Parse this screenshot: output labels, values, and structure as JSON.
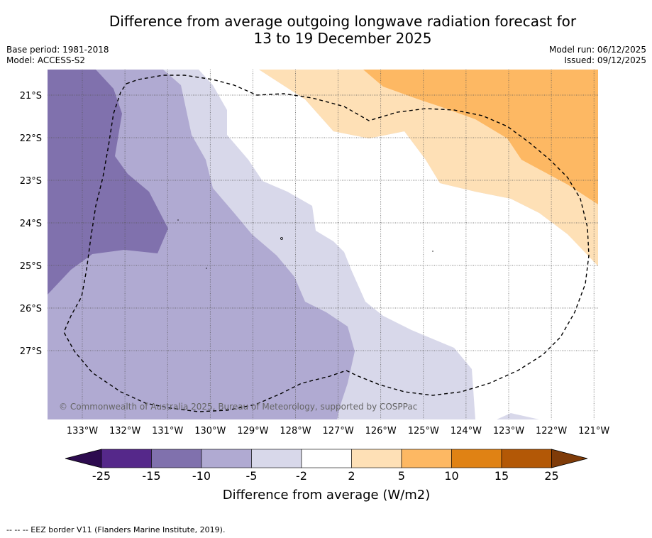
{
  "title": {
    "line1": "Difference from average outgoing longwave radiation forecast for",
    "line2": "13 to 19 December 2025"
  },
  "meta_left": {
    "base_period": "Base period: 1981-2018",
    "model": "Model: ACCESS-S2"
  },
  "meta_right": {
    "model_run": "Model run: 06/12/2025",
    "issued": "Issued: 09/12/2025"
  },
  "map": {
    "lat_labels": [
      "21°S",
      "22°S",
      "23°S",
      "24°S",
      "25°S",
      "26°S",
      "27°S"
    ],
    "lon_labels": [
      "133°W",
      "132°W",
      "131°W",
      "130°W",
      "129°W",
      "128°W",
      "127°W",
      "126°W",
      "125°W",
      "124°W",
      "123°W",
      "122°W",
      "121°W"
    ],
    "copyright": "© Commonwealth of Australia 2025, Bureau of Meteorology, supported by COSPPac"
  },
  "colorbar": {
    "tick_labels": [
      "-25",
      "-15",
      "-10",
      "-5",
      "-2",
      "2",
      "5",
      "10",
      "15",
      "25"
    ],
    "label": "Difference from average (W/m2)",
    "colors": [
      "#2d0b4f",
      "#55288a",
      "#8071ad",
      "#b0aad2",
      "#d8d8ea",
      "#ffffff",
      "#fee0b6",
      "#fdb863",
      "#e08214",
      "#b35806",
      "#7f3b08"
    ]
  },
  "footnote": "--  --  -- EEZ border V11 (Flanders Marine Institute, 2019)."
}
